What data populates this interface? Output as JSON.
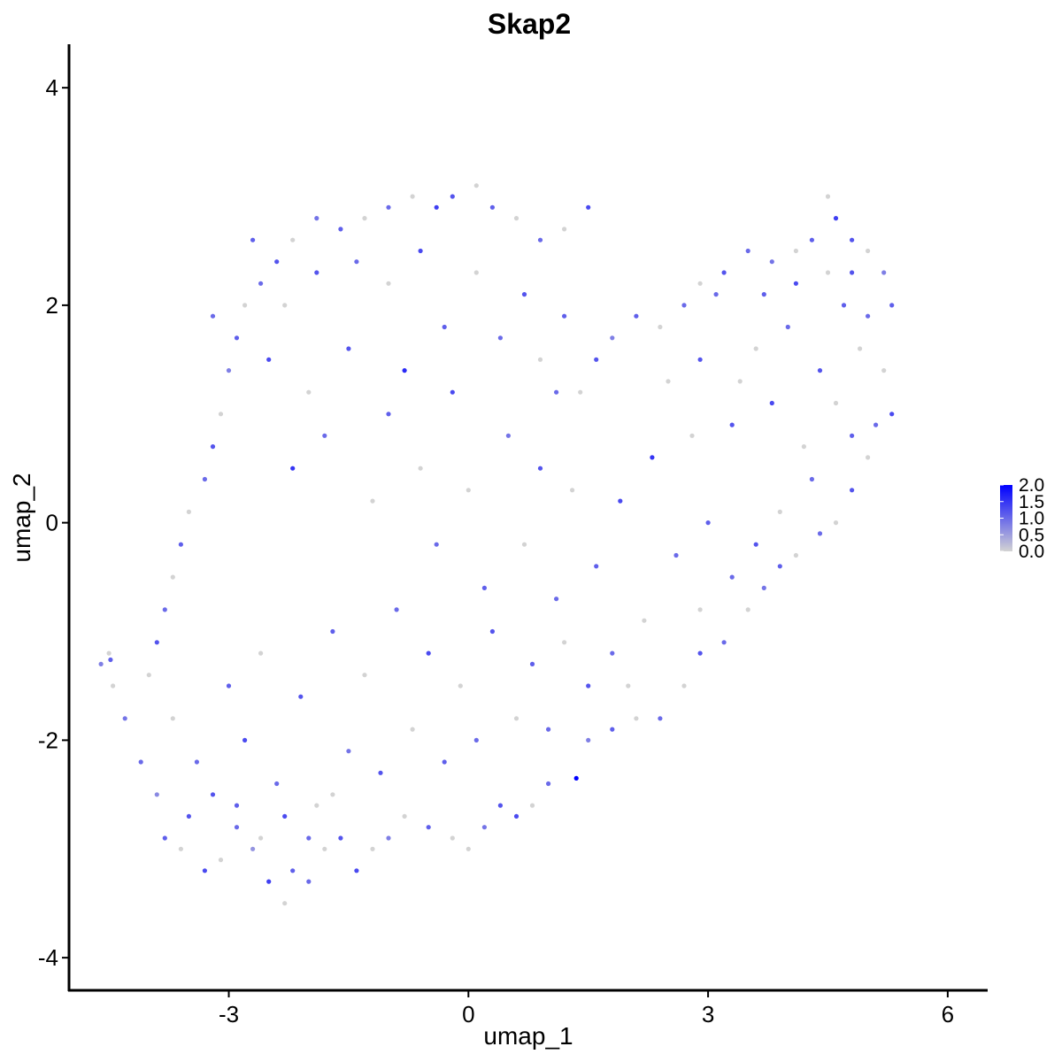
{
  "chart_data": {
    "type": "scatter",
    "title": "Skap2",
    "xlabel": "umap_1",
    "ylabel": "umap_2",
    "xlim": [
      -5.0,
      6.5
    ],
    "ylim": [
      -4.3,
      4.4
    ],
    "xticks": [
      -3,
      0,
      3,
      6
    ],
    "yticks": [
      -4,
      -2,
      0,
      2,
      4
    ],
    "grid": false,
    "colors": {
      "low": "#d3d3d3",
      "high": "#0000ff"
    },
    "legend": {
      "position": "right",
      "type": "colorbar",
      "range": [
        0,
        2
      ],
      "ticks": [
        "0.0",
        "0.5",
        "1.0",
        "1.5",
        "2.0"
      ]
    },
    "points": [
      {
        "x": -4.6,
        "y": -1.3,
        "v": 0.8
      },
      {
        "x": -4.5,
        "y": -1.2,
        "v": 0.0
      },
      {
        "x": -4.48,
        "y": -1.26,
        "v": 1.1
      },
      {
        "x": -4.45,
        "y": -1.5,
        "v": 0.0
      },
      {
        "x": -4.3,
        "y": -1.8,
        "v": 0.9
      },
      {
        "x": -4.1,
        "y": -2.2,
        "v": 1.0
      },
      {
        "x": -3.9,
        "y": -2.5,
        "v": 0.7
      },
      {
        "x": -3.8,
        "y": -2.9,
        "v": 1.1
      },
      {
        "x": -3.6,
        "y": -3.0,
        "v": 0.0
      },
      {
        "x": -3.5,
        "y": -2.7,
        "v": 1.2
      },
      {
        "x": -3.3,
        "y": -3.2,
        "v": 1.3
      },
      {
        "x": -3.1,
        "y": -3.1,
        "v": 0.0
      },
      {
        "x": -2.9,
        "y": -2.8,
        "v": 1.0
      },
      {
        "x": -2.7,
        "y": -3.0,
        "v": 0.6
      },
      {
        "x": -2.5,
        "y": -3.3,
        "v": 1.4
      },
      {
        "x": -2.3,
        "y": -3.5,
        "v": 0.0
      },
      {
        "x": -2.2,
        "y": -3.2,
        "v": 1.1
      },
      {
        "x": -2.0,
        "y": -3.3,
        "v": 1.0
      },
      {
        "x": -1.8,
        "y": -3.0,
        "v": 0.0
      },
      {
        "x": -1.6,
        "y": -2.9,
        "v": 1.2
      },
      {
        "x": -1.4,
        "y": -3.2,
        "v": 1.3
      },
      {
        "x": -1.2,
        "y": -3.0,
        "v": 0.0
      },
      {
        "x": -1.0,
        "y": -2.9,
        "v": 0.8
      },
      {
        "x": -0.8,
        "y": -2.7,
        "v": 0.0
      },
      {
        "x": -0.5,
        "y": -2.8,
        "v": 1.1
      },
      {
        "x": -0.2,
        "y": -2.9,
        "v": 0.0
      },
      {
        "x": 0.0,
        "y": -3.0,
        "v": 0.0
      },
      {
        "x": 0.2,
        "y": -2.8,
        "v": 0.9
      },
      {
        "x": 0.4,
        "y": -2.6,
        "v": 1.2
      },
      {
        "x": 0.6,
        "y": -2.7,
        "v": 1.3
      },
      {
        "x": 0.8,
        "y": -2.6,
        "v": 0.0
      },
      {
        "x": 1.0,
        "y": -2.4,
        "v": 1.0
      },
      {
        "x": 1.35,
        "y": -2.35,
        "v": 2.0
      },
      {
        "x": 1.5,
        "y": -2.0,
        "v": 0.8
      },
      {
        "x": 1.8,
        "y": -1.9,
        "v": 1.1
      },
      {
        "x": 2.1,
        "y": -1.8,
        "v": 0.0
      },
      {
        "x": 2.4,
        "y": -1.8,
        "v": 1.0
      },
      {
        "x": 2.7,
        "y": -1.5,
        "v": 0.0
      },
      {
        "x": 2.9,
        "y": -1.2,
        "v": 1.2
      },
      {
        "x": 3.2,
        "y": -1.1,
        "v": 1.0
      },
      {
        "x": 3.5,
        "y": -0.8,
        "v": 0.0
      },
      {
        "x": 3.7,
        "y": -0.6,
        "v": 0.9
      },
      {
        "x": 3.9,
        "y": -0.4,
        "v": 1.1
      },
      {
        "x": 4.1,
        "y": -0.3,
        "v": 0.0
      },
      {
        "x": 4.4,
        "y": -0.1,
        "v": 1.0
      },
      {
        "x": 4.6,
        "y": 0.0,
        "v": 0.0
      },
      {
        "x": 4.8,
        "y": 0.3,
        "v": 1.2
      },
      {
        "x": 5.0,
        "y": 0.6,
        "v": 0.0
      },
      {
        "x": 5.1,
        "y": 0.9,
        "v": 1.0
      },
      {
        "x": 5.3,
        "y": 1.0,
        "v": 1.3
      },
      {
        "x": 5.2,
        "y": 1.4,
        "v": 0.0
      },
      {
        "x": 5.3,
        "y": 2.0,
        "v": 1.1
      },
      {
        "x": 5.2,
        "y": 2.3,
        "v": 0.8
      },
      {
        "x": 5.0,
        "y": 2.5,
        "v": 0.0
      },
      {
        "x": 4.8,
        "y": 2.6,
        "v": 1.2
      },
      {
        "x": 4.6,
        "y": 2.8,
        "v": 1.4
      },
      {
        "x": 4.5,
        "y": 3.0,
        "v": 0.0
      },
      {
        "x": 4.3,
        "y": 2.6,
        "v": 1.1
      },
      {
        "x": 4.1,
        "y": 2.5,
        "v": 0.0
      },
      {
        "x": 3.8,
        "y": 2.4,
        "v": 0.9
      },
      {
        "x": 3.5,
        "y": 2.5,
        "v": 1.0
      },
      {
        "x": 3.2,
        "y": 2.3,
        "v": 1.2
      },
      {
        "x": 2.9,
        "y": 2.2,
        "v": 0.0
      },
      {
        "x": 2.7,
        "y": 2.0,
        "v": 1.0
      },
      {
        "x": 2.4,
        "y": 1.8,
        "v": 0.0
      },
      {
        "x": 2.1,
        "y": 1.9,
        "v": 1.1
      },
      {
        "x": 1.8,
        "y": 1.7,
        "v": 0.8
      },
      {
        "x": 1.6,
        "y": 1.5,
        "v": 1.2
      },
      {
        "x": 1.4,
        "y": 1.2,
        "v": 0.0
      },
      {
        "x": 1.5,
        "y": 2.9,
        "v": 1.3
      },
      {
        "x": 1.2,
        "y": 2.7,
        "v": 0.0
      },
      {
        "x": 0.9,
        "y": 2.6,
        "v": 1.0
      },
      {
        "x": 0.6,
        "y": 2.8,
        "v": 0.0
      },
      {
        "x": 0.3,
        "y": 2.9,
        "v": 1.1
      },
      {
        "x": 0.1,
        "y": 3.1,
        "v": 0.0
      },
      {
        "x": -0.2,
        "y": 3.0,
        "v": 1.2
      },
      {
        "x": -0.4,
        "y": 2.9,
        "v": 1.4
      },
      {
        "x": -0.7,
        "y": 3.0,
        "v": 0.0
      },
      {
        "x": -1.0,
        "y": 2.9,
        "v": 1.0
      },
      {
        "x": -1.3,
        "y": 2.8,
        "v": 0.0
      },
      {
        "x": -1.6,
        "y": 2.7,
        "v": 1.1
      },
      {
        "x": -1.9,
        "y": 2.8,
        "v": 0.9
      },
      {
        "x": -2.2,
        "y": 2.6,
        "v": 0.0
      },
      {
        "x": -2.4,
        "y": 2.4,
        "v": 1.2
      },
      {
        "x": -2.6,
        "y": 2.2,
        "v": 1.0
      },
      {
        "x": -2.8,
        "y": 2.0,
        "v": 0.0
      },
      {
        "x": -2.9,
        "y": 1.7,
        "v": 1.1
      },
      {
        "x": -3.0,
        "y": 1.4,
        "v": 0.8
      },
      {
        "x": -3.1,
        "y": 1.0,
        "v": 0.0
      },
      {
        "x": -3.2,
        "y": 0.7,
        "v": 1.2
      },
      {
        "x": -3.3,
        "y": 0.4,
        "v": 1.0
      },
      {
        "x": -3.5,
        "y": 0.1,
        "v": 0.0
      },
      {
        "x": -3.6,
        "y": -0.2,
        "v": 1.1
      },
      {
        "x": -3.7,
        "y": -0.5,
        "v": 0.0
      },
      {
        "x": -3.8,
        "y": -0.8,
        "v": 1.0
      },
      {
        "x": -3.9,
        "y": -1.1,
        "v": 1.2
      },
      {
        "x": -4.0,
        "y": -1.4,
        "v": 0.0
      },
      {
        "x": -2.5,
        "y": 1.5,
        "v": 1.3
      },
      {
        "x": -2.2,
        "y": 0.5,
        "v": 1.5
      },
      {
        "x": -2.0,
        "y": 1.2,
        "v": 0.0
      },
      {
        "x": -1.8,
        "y": 0.8,
        "v": 1.0
      },
      {
        "x": -1.5,
        "y": 1.6,
        "v": 1.2
      },
      {
        "x": -1.2,
        "y": 0.2,
        "v": 0.0
      },
      {
        "x": -1.0,
        "y": 1.0,
        "v": 1.1
      },
      {
        "x": -0.8,
        "y": 1.4,
        "v": 1.6
      },
      {
        "x": -0.6,
        "y": 0.5,
        "v": 0.0
      },
      {
        "x": -0.4,
        "y": -0.2,
        "v": 1.0
      },
      {
        "x": -0.2,
        "y": 1.2,
        "v": 1.3
      },
      {
        "x": 0.0,
        "y": 0.3,
        "v": 0.0
      },
      {
        "x": 0.2,
        "y": -0.6,
        "v": 1.1
      },
      {
        "x": 0.5,
        "y": 0.8,
        "v": 0.9
      },
      {
        "x": 0.7,
        "y": -0.2,
        "v": 0.0
      },
      {
        "x": 0.9,
        "y": 0.5,
        "v": 1.2
      },
      {
        "x": 1.1,
        "y": -0.7,
        "v": 1.0
      },
      {
        "x": 1.3,
        "y": 0.3,
        "v": 0.0
      },
      {
        "x": 1.6,
        "y": -0.4,
        "v": 1.1
      },
      {
        "x": 1.9,
        "y": 0.2,
        "v": 1.3
      },
      {
        "x": 2.2,
        "y": -0.9,
        "v": 0.0
      },
      {
        "x": 2.3,
        "y": 0.6,
        "v": 1.5
      },
      {
        "x": 2.6,
        "y": -0.3,
        "v": 1.0
      },
      {
        "x": 2.8,
        "y": 0.8,
        "v": 0.0
      },
      {
        "x": 3.0,
        "y": 0.0,
        "v": 1.1
      },
      {
        "x": 3.3,
        "y": 0.9,
        "v": 1.2
      },
      {
        "x": 3.6,
        "y": 1.6,
        "v": 0.0
      },
      {
        "x": 3.8,
        "y": 1.1,
        "v": 1.3
      },
      {
        "x": 4.0,
        "y": 1.8,
        "v": 1.0
      },
      {
        "x": 4.2,
        "y": 0.7,
        "v": 0.0
      },
      {
        "x": 4.4,
        "y": 1.4,
        "v": 1.2
      },
      {
        "x": 4.7,
        "y": 2.0,
        "v": 1.1
      },
      {
        "x": 4.9,
        "y": 1.6,
        "v": 0.0
      },
      {
        "x": -3.0,
        "y": -1.5,
        "v": 1.1
      },
      {
        "x": -2.8,
        "y": -2.0,
        "v": 1.3
      },
      {
        "x": -2.6,
        "y": -1.2,
        "v": 0.0
      },
      {
        "x": -2.4,
        "y": -2.4,
        "v": 1.0
      },
      {
        "x": -2.1,
        "y": -1.6,
        "v": 1.2
      },
      {
        "x": -1.9,
        "y": -2.6,
        "v": 0.0
      },
      {
        "x": -1.7,
        "y": -1.0,
        "v": 1.1
      },
      {
        "x": -1.5,
        "y": -2.1,
        "v": 0.9
      },
      {
        "x": -1.3,
        "y": -1.4,
        "v": 0.0
      },
      {
        "x": -1.1,
        "y": -2.3,
        "v": 1.2
      },
      {
        "x": -0.9,
        "y": -0.8,
        "v": 1.0
      },
      {
        "x": -0.7,
        "y": -1.9,
        "v": 0.0
      },
      {
        "x": -0.5,
        "y": -1.2,
        "v": 1.3
      },
      {
        "x": -0.3,
        "y": -2.2,
        "v": 1.1
      },
      {
        "x": -0.1,
        "y": -1.5,
        "v": 0.0
      },
      {
        "x": 0.1,
        "y": -2.0,
        "v": 1.0
      },
      {
        "x": 0.3,
        "y": -1.0,
        "v": 1.2
      },
      {
        "x": 0.6,
        "y": -1.8,
        "v": 0.0
      },
      {
        "x": 0.8,
        "y": -1.3,
        "v": 1.1
      },
      {
        "x": 1.0,
        "y": -1.9,
        "v": 1.0
      },
      {
        "x": 1.2,
        "y": -1.1,
        "v": 0.0
      },
      {
        "x": 1.5,
        "y": -1.5,
        "v": 1.2
      },
      {
        "x": 1.8,
        "y": -1.2,
        "v": 1.0
      },
      {
        "x": 2.0,
        "y": -1.5,
        "v": 0.0
      },
      {
        "x": -3.4,
        "y": -2.2,
        "v": 1.0
      },
      {
        "x": -3.7,
        "y": -1.8,
        "v": 0.0
      },
      {
        "x": -3.2,
        "y": -2.5,
        "v": 1.2
      },
      {
        "x": -2.9,
        "y": -2.6,
        "v": 1.1
      },
      {
        "x": -2.6,
        "y": -2.9,
        "v": 0.0
      },
      {
        "x": -2.3,
        "y": -2.7,
        "v": 1.3
      },
      {
        "x": -2.0,
        "y": -2.9,
        "v": 1.0
      },
      {
        "x": -1.7,
        "y": -2.5,
        "v": 0.0
      },
      {
        "x": -3.2,
        "y": 1.9,
        "v": 1.0
      },
      {
        "x": -2.7,
        "y": 2.6,
        "v": 1.1
      },
      {
        "x": -2.3,
        "y": 2.0,
        "v": 0.0
      },
      {
        "x": -1.9,
        "y": 2.3,
        "v": 1.2
      },
      {
        "x": -1.4,
        "y": 2.4,
        "v": 1.0
      },
      {
        "x": -1.0,
        "y": 2.2,
        "v": 0.0
      },
      {
        "x": -0.6,
        "y": 2.5,
        "v": 1.3
      },
      {
        "x": -0.3,
        "y": 1.8,
        "v": 1.1
      },
      {
        "x": 0.1,
        "y": 2.3,
        "v": 0.0
      },
      {
        "x": 0.4,
        "y": 1.7,
        "v": 1.0
      },
      {
        "x": 0.7,
        "y": 2.1,
        "v": 1.2
      },
      {
        "x": 0.9,
        "y": 1.5,
        "v": 0.0
      },
      {
        "x": 1.2,
        "y": 1.9,
        "v": 1.1
      },
      {
        "x": 1.1,
        "y": 1.2,
        "v": 1.0
      },
      {
        "x": 2.5,
        "y": 1.3,
        "v": 0.0
      },
      {
        "x": 2.9,
        "y": 1.5,
        "v": 1.2
      },
      {
        "x": 3.1,
        "y": 2.1,
        "v": 1.0
      },
      {
        "x": 3.4,
        "y": 1.3,
        "v": 0.0
      },
      {
        "x": 3.7,
        "y": 2.1,
        "v": 1.1
      },
      {
        "x": 4.1,
        "y": 2.2,
        "v": 1.3
      },
      {
        "x": 4.5,
        "y": 2.3,
        "v": 0.0
      },
      {
        "x": 4.8,
        "y": 2.3,
        "v": 1.2
      },
      {
        "x": 5.0,
        "y": 1.9,
        "v": 1.0
      },
      {
        "x": 4.6,
        "y": 1.1,
        "v": 0.0
      },
      {
        "x": 4.8,
        "y": 0.8,
        "v": 1.1
      },
      {
        "x": 4.3,
        "y": 0.4,
        "v": 1.0
      },
      {
        "x": 3.9,
        "y": 0.1,
        "v": 0.0
      },
      {
        "x": 3.6,
        "y": -0.2,
        "v": 1.2
      },
      {
        "x": 3.3,
        "y": -0.5,
        "v": 1.0
      },
      {
        "x": 2.9,
        "y": -0.8,
        "v": 0.0
      }
    ]
  }
}
